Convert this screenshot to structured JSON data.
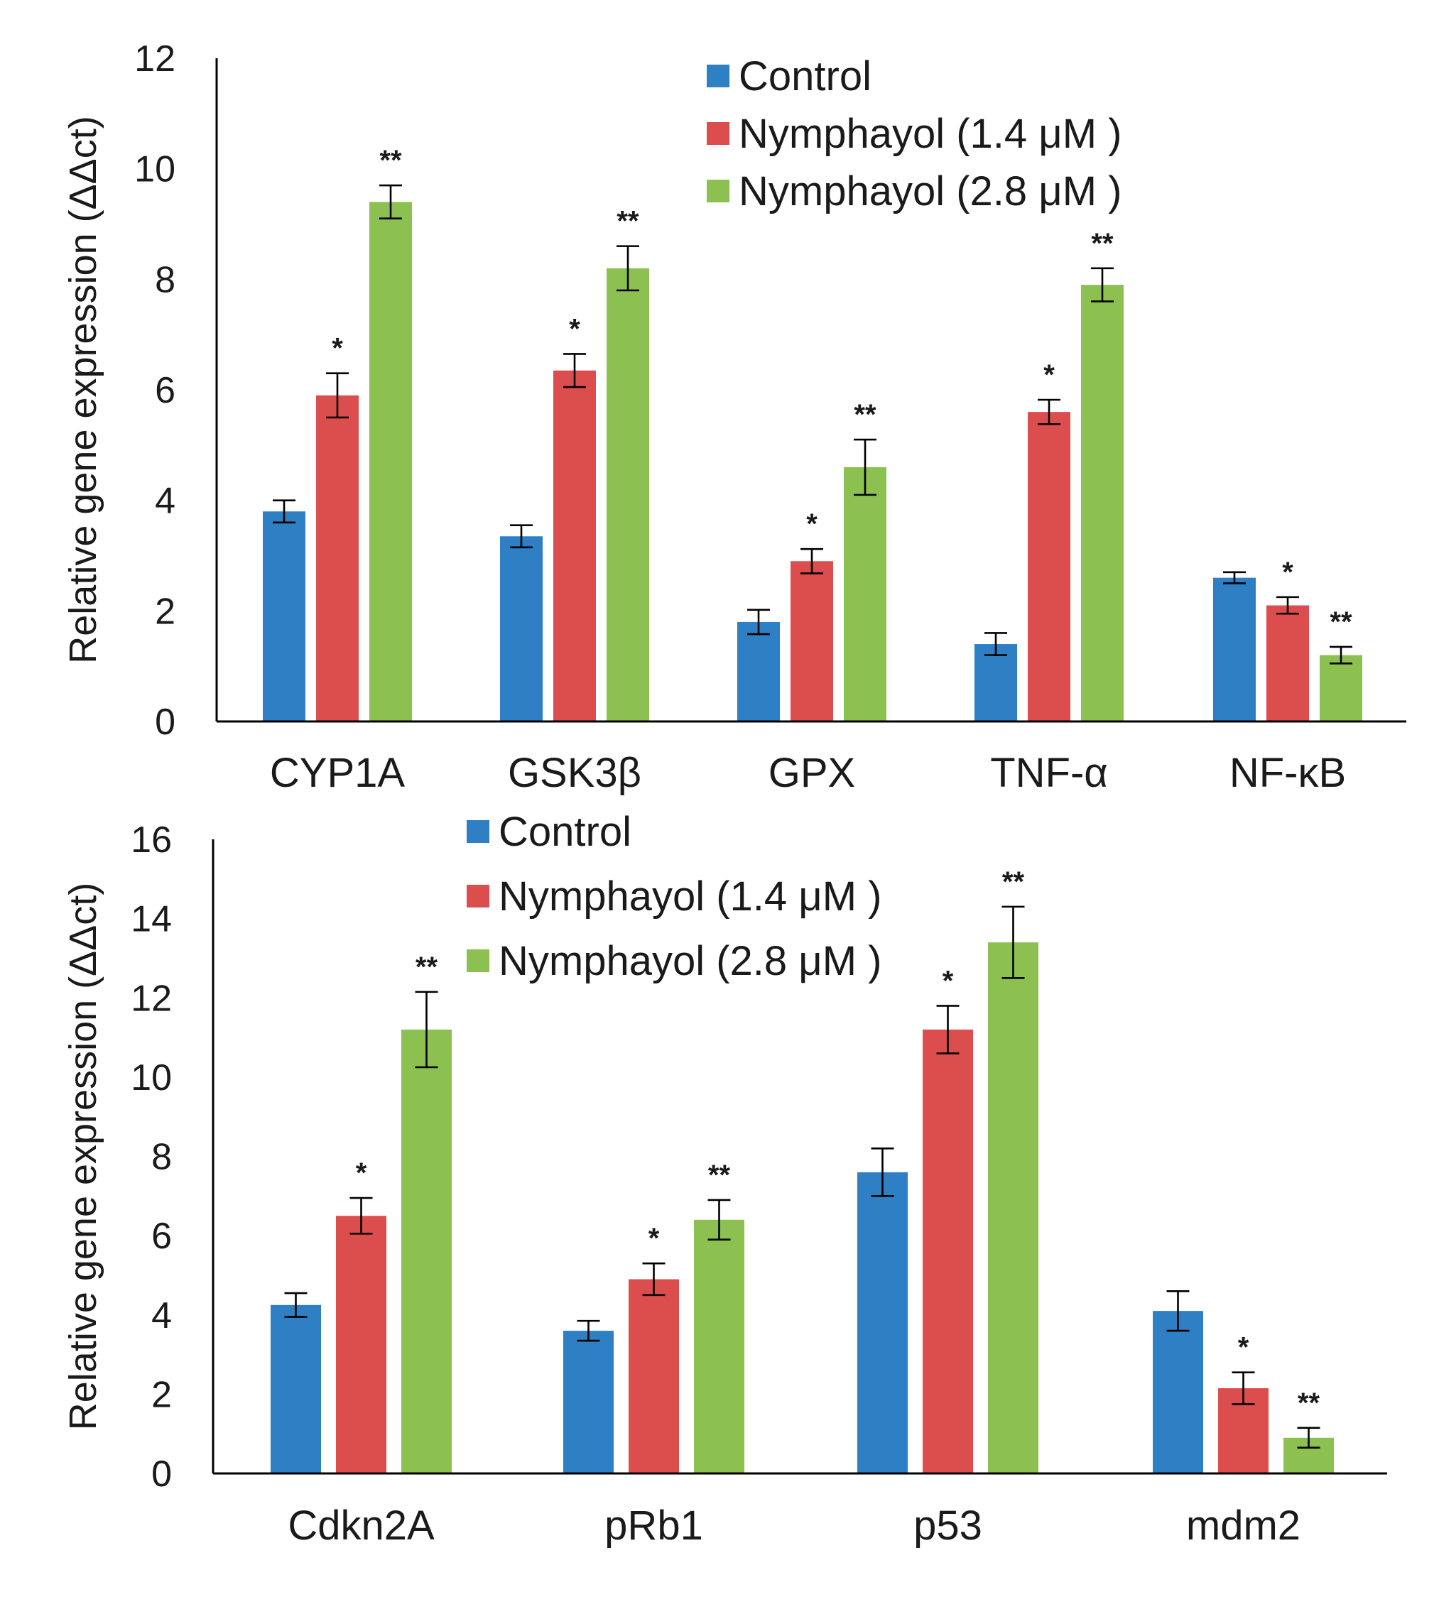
{
  "colors": {
    "control": "#2e7fc4",
    "low": "#dc4d4d",
    "high": "#8cc152",
    "axis": "#000000",
    "text": "#1a1a1a"
  },
  "chart_data": [
    {
      "type": "bar",
      "id": "top",
      "ylabel": "Relative gene expression (ΔΔct)",
      "ylim": [
        0,
        12
      ],
      "yticks": [
        0,
        2,
        4,
        6,
        8,
        10,
        12
      ],
      "ytick_labels": [
        "0",
        "2",
        "4",
        "6",
        "8",
        "10",
        "12"
      ],
      "legend_position": "top-center",
      "categories": [
        "CYP1A",
        "GSK3β",
        "GPX",
        "TNF-α",
        "NF-κB"
      ],
      "series": [
        {
          "name": "Control",
          "color_key": "control",
          "values": [
            3.8,
            3.35,
            1.8,
            1.4,
            2.6
          ],
          "errors": [
            0.2,
            0.2,
            0.22,
            0.2,
            0.1
          ],
          "significance": [
            "",
            "",
            "",
            "",
            ""
          ]
        },
        {
          "name": "Nymphayol (1.4 μM )",
          "color_key": "low",
          "values": [
            5.9,
            6.35,
            2.9,
            5.6,
            2.1
          ],
          "errors": [
            0.4,
            0.3,
            0.22,
            0.22,
            0.15
          ],
          "significance": [
            "*",
            "*",
            "*",
            "*",
            "*"
          ]
        },
        {
          "name": "Nymphayol (2.8 μM )",
          "color_key": "high",
          "values": [
            9.4,
            8.2,
            4.6,
            7.9,
            1.2
          ],
          "errors": [
            0.3,
            0.4,
            0.5,
            0.3,
            0.15
          ],
          "significance": [
            "**",
            "**",
            "**",
            "**",
            "**"
          ]
        }
      ]
    },
    {
      "type": "bar",
      "id": "bottom",
      "ylabel": "Relative gene expression (ΔΔct)",
      "ylim": [
        0,
        16
      ],
      "yticks": [
        0,
        2,
        4,
        6,
        8,
        10,
        12,
        14,
        16
      ],
      "ytick_labels": [
        "0",
        "2",
        "4",
        "6",
        "8",
        "10",
        "12",
        "14",
        "16"
      ],
      "legend_position": "top-left",
      "categories": [
        "Cdkn2A",
        "pRb1",
        "p53",
        "mdm2"
      ],
      "series": [
        {
          "name": "Control",
          "color_key": "control",
          "values": [
            4.25,
            3.6,
            7.6,
            4.1
          ],
          "errors": [
            0.3,
            0.25,
            0.6,
            0.5
          ],
          "significance": [
            "",
            "",
            "",
            ""
          ]
        },
        {
          "name": "Nymphayol (1.4 μM )",
          "color_key": "low",
          "values": [
            6.5,
            4.9,
            11.2,
            2.15
          ],
          "errors": [
            0.45,
            0.4,
            0.6,
            0.4
          ],
          "significance": [
            "*",
            "*",
            "*",
            "*"
          ]
        },
        {
          "name": "Nymphayol (2.8 μM )",
          "color_key": "high",
          "values": [
            11.2,
            6.4,
            13.4,
            0.9
          ],
          "errors": [
            0.95,
            0.5,
            0.9,
            0.25
          ],
          "significance": [
            "**",
            "**",
            "**",
            "**"
          ]
        }
      ]
    }
  ]
}
